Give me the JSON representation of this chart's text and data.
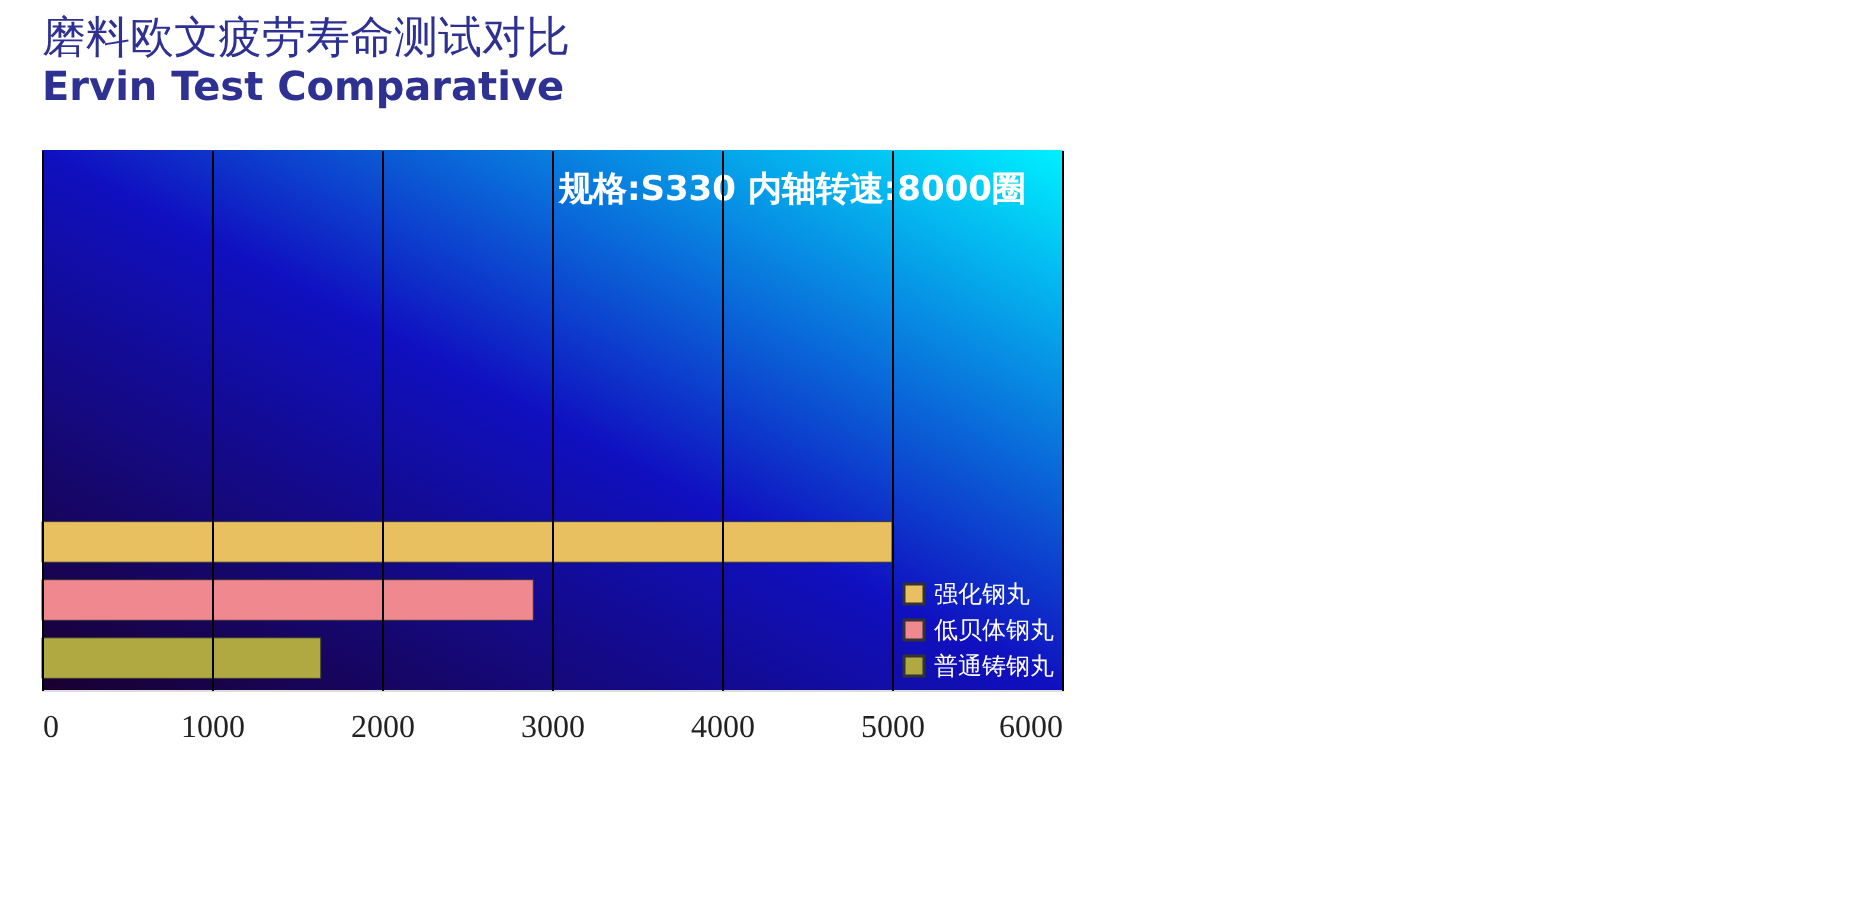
{
  "chart_data": {
    "type": "bar",
    "orientation": "horizontal",
    "title": "磨料欧文疲劳寿命测试对比",
    "subtitle": "Ervin Test Comparative",
    "categories": [
      null
    ],
    "series": [
      {
        "name": "强化钢丸",
        "color": "#e8c060",
        "values": [
          5000
        ]
      },
      {
        "name": "低贝体钢丸",
        "color": "#f08890",
        "values": [
          2890
        ]
      },
      {
        "name": "普通铸钢丸",
        "color": "#b0a840",
        "values": [
          1640
        ]
      }
    ],
    "xlim": [
      0,
      6000
    ],
    "xticks": [
      0,
      1000,
      2000,
      3000,
      4000,
      5000,
      6000
    ],
    "grid": "x",
    "legend": "bottom right",
    "annotations": [
      "规格:S330   内轴转速:8000圈"
    ]
  }
}
